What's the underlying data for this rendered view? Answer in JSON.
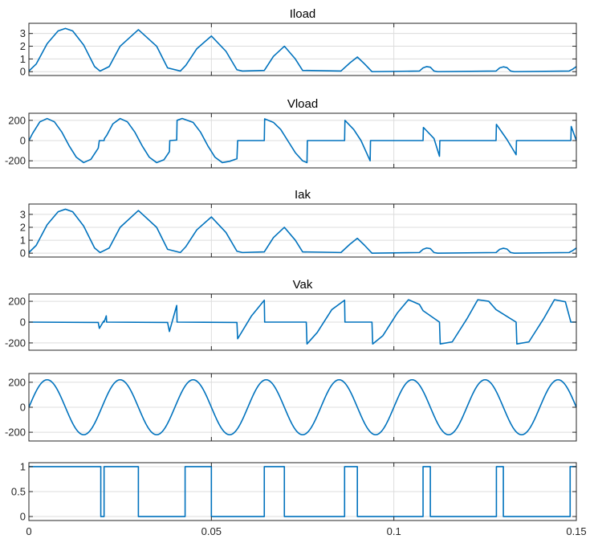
{
  "chart_data": [
    {
      "type": "line",
      "title": "Iload",
      "xlabel": "",
      "ylabel": "",
      "xlim": [
        0,
        0.15
      ],
      "ylim": [
        -0.3,
        3.8
      ],
      "yticks": [
        0,
        1,
        2,
        3
      ],
      "ytick_labels": [
        "0",
        "1",
        "2",
        "3"
      ],
      "grid": true,
      "series": [
        {
          "x": [
            0,
            0.002,
            0.005,
            0.008,
            0.01,
            0.012,
            0.015,
            0.018,
            0.0195,
            0.022,
            0.025,
            0.03,
            0.035,
            0.038,
            0.0415,
            0.043,
            0.046,
            0.05,
            0.054,
            0.057,
            0.0585,
            0.0645,
            0.067,
            0.07,
            0.073,
            0.075,
            0.0855,
            0.088,
            0.09,
            0.092,
            0.094,
            0.107,
            0.108,
            0.109,
            0.11,
            0.111,
            0.112,
            0.128,
            0.129,
            0.13,
            0.131,
            0.132,
            0.133,
            0.148,
            0.149,
            0.15
          ],
          "y": [
            0.05,
            0.6,
            2.2,
            3.2,
            3.4,
            3.2,
            2.1,
            0.4,
            0.05,
            0.4,
            2.0,
            3.3,
            2.0,
            0.3,
            0.05,
            0.5,
            1.8,
            2.8,
            1.6,
            0.15,
            0.05,
            0.1,
            1.2,
            2.0,
            1.0,
            0.1,
            0.05,
            0.7,
            1.15,
            0.6,
            0.0,
            0.05,
            0.3,
            0.4,
            0.35,
            0.05,
            0.0,
            0.05,
            0.3,
            0.38,
            0.32,
            0.05,
            0.0,
            0.05,
            0.2,
            0.4
          ]
        }
      ]
    },
    {
      "type": "line",
      "title": "Vload",
      "xlabel": "",
      "ylabel": "",
      "xlim": [
        0,
        0.15
      ],
      "ylim": [
        -270,
        270
      ],
      "yticks": [
        -200,
        0,
        200
      ],
      "ytick_labels": [
        "-200",
        "0",
        "200"
      ],
      "grid": true,
      "series": [
        {
          "x": [
            0,
            0.001,
            0.003,
            0.005,
            0.007,
            0.009,
            0.011,
            0.013,
            0.015,
            0.017,
            0.019,
            0.0193,
            0.0206,
            0.0207,
            0.0213,
            0.023,
            0.025,
            0.027,
            0.029,
            0.031,
            0.033,
            0.035,
            0.037,
            0.0385,
            0.0386,
            0.0405,
            0.0406,
            0.042,
            0.045,
            0.047,
            0.049,
            0.051,
            0.053,
            0.055,
            0.057,
            0.0572,
            0.0645,
            0.0646,
            0.067,
            0.069,
            0.071,
            0.073,
            0.075,
            0.0762,
            0.0763,
            0.0865,
            0.0866,
            0.089,
            0.091,
            0.0935,
            0.0936,
            0.108,
            0.1081,
            0.111,
            0.1125,
            0.1126,
            0.128,
            0.1281,
            0.131,
            0.1335,
            0.1336,
            0.1485,
            0.1486,
            0.15
          ],
          "y": [
            0,
            70,
            185,
            218,
            185,
            85,
            -50,
            -165,
            -218,
            -185,
            -75,
            0,
            0,
            20,
            50,
            165,
            218,
            185,
            85,
            -50,
            -165,
            -218,
            -190,
            -110,
            0,
            5,
            200,
            218,
            180,
            85,
            -50,
            -165,
            -218,
            -205,
            -180,
            0,
            0,
            215,
            180,
            110,
            -5,
            -120,
            -200,
            -218,
            0,
            0,
            200,
            110,
            0,
            -200,
            0,
            0,
            130,
            20,
            -155,
            0,
            0,
            160,
            10,
            -140,
            0,
            0,
            140,
            0
          ]
        }
      ]
    },
    {
      "type": "line",
      "title": "Iak",
      "xlabel": "",
      "ylabel": "",
      "xlim": [
        0,
        0.15
      ],
      "ylim": [
        -0.3,
        3.8
      ],
      "yticks": [
        0,
        1,
        2,
        3
      ],
      "ytick_labels": [
        "0",
        "1",
        "2",
        "3"
      ],
      "grid": true,
      "series": [
        {
          "x": [
            0,
            0.002,
            0.005,
            0.008,
            0.01,
            0.012,
            0.015,
            0.018,
            0.0195,
            0.022,
            0.025,
            0.03,
            0.035,
            0.038,
            0.0415,
            0.043,
            0.046,
            0.05,
            0.054,
            0.057,
            0.0585,
            0.0645,
            0.067,
            0.07,
            0.073,
            0.075,
            0.0855,
            0.088,
            0.09,
            0.092,
            0.094,
            0.107,
            0.108,
            0.109,
            0.11,
            0.111,
            0.112,
            0.128,
            0.129,
            0.13,
            0.131,
            0.132,
            0.133,
            0.148,
            0.149,
            0.15
          ],
          "y": [
            0.05,
            0.6,
            2.2,
            3.2,
            3.4,
            3.2,
            2.1,
            0.4,
            0.05,
            0.4,
            2.0,
            3.3,
            2.0,
            0.3,
            0.05,
            0.5,
            1.8,
            2.8,
            1.6,
            0.15,
            0.05,
            0.1,
            1.2,
            2.0,
            1.0,
            0.1,
            0.05,
            0.7,
            1.15,
            0.6,
            0.0,
            0.05,
            0.3,
            0.4,
            0.35,
            0.05,
            0.0,
            0.05,
            0.3,
            0.38,
            0.32,
            0.05,
            0.0,
            0.05,
            0.2,
            0.4
          ]
        }
      ]
    },
    {
      "type": "line",
      "title": "Vak",
      "xlabel": "",
      "ylabel": "",
      "xlim": [
        0,
        0.15
      ],
      "ylim": [
        -270,
        270
      ],
      "yticks": [
        -200,
        0,
        200
      ],
      "ytick_labels": [
        "-200",
        "0",
        "200"
      ],
      "grid": true,
      "series": [
        {
          "x": [
            0,
            0.019,
            0.0193,
            0.0205,
            0.0206,
            0.0212,
            0.0213,
            0.038,
            0.0385,
            0.0405,
            0.0406,
            0.057,
            0.0572,
            0.061,
            0.0645,
            0.0646,
            0.076,
            0.0762,
            0.079,
            0.083,
            0.0865,
            0.0866,
            0.094,
            0.0942,
            0.097,
            0.101,
            0.104,
            0.107,
            0.108,
            0.1125,
            0.1127,
            0.116,
            0.12,
            0.123,
            0.126,
            0.128,
            0.1335,
            0.1337,
            0.137,
            0.141,
            0.144,
            0.147,
            0.1485,
            0.15
          ],
          "y": [
            0,
            -3,
            -60,
            10,
            0,
            60,
            0,
            -3,
            -90,
            160,
            0,
            -3,
            -160,
            60,
            210,
            0,
            0,
            -210,
            -100,
            120,
            210,
            0,
            0,
            -210,
            -130,
            90,
            215,
            170,
            110,
            0,
            -210,
            -190,
            30,
            215,
            200,
            120,
            0,
            -210,
            -190,
            30,
            215,
            195,
            0,
            0
          ]
        }
      ]
    },
    {
      "type": "line",
      "title": "",
      "xlabel": "",
      "ylabel": "",
      "xlim": [
        0,
        0.15
      ],
      "ylim": [
        -270,
        270
      ],
      "yticks": [
        -200,
        0,
        200
      ],
      "ytick_labels": [
        "-200",
        "0",
        "200"
      ],
      "grid": true,
      "series": [
        {
          "function": "sin",
          "amplitude": 220,
          "frequency": 50,
          "phase": 0
        }
      ]
    },
    {
      "type": "line",
      "title": "",
      "xlabel": "",
      "ylabel": "",
      "xlim": [
        0,
        0.15
      ],
      "ylim": [
        -0.08,
        1.08
      ],
      "yticks": [
        0,
        0.5,
        1
      ],
      "ytick_labels": [
        "0",
        "0.5",
        "1"
      ],
      "xticks": [
        0,
        0.05,
        0.1,
        0.15
      ],
      "xtick_labels": [
        "0",
        "0.05",
        "0.1",
        "0.15"
      ],
      "grid": true,
      "series": [
        {
          "x": [
            0,
            0.0197,
            0.0197,
            0.0206,
            0.0206,
            0.03,
            0.03,
            0.0428,
            0.0428,
            0.05,
            0.05,
            0.0645,
            0.0645,
            0.07,
            0.07,
            0.0865,
            0.0865,
            0.09,
            0.09,
            0.108,
            0.108,
            0.11,
            0.11,
            0.1281,
            0.1281,
            0.13,
            0.13,
            0.1483,
            0.1483,
            0.15
          ],
          "y": [
            1,
            1,
            0,
            0,
            1,
            1,
            0,
            0,
            1,
            1,
            0,
            0,
            1,
            1,
            0,
            0,
            1,
            1,
            0,
            0,
            1,
            1,
            0,
            0,
            1,
            1,
            0,
            0,
            1,
            1
          ]
        }
      ]
    }
  ]
}
